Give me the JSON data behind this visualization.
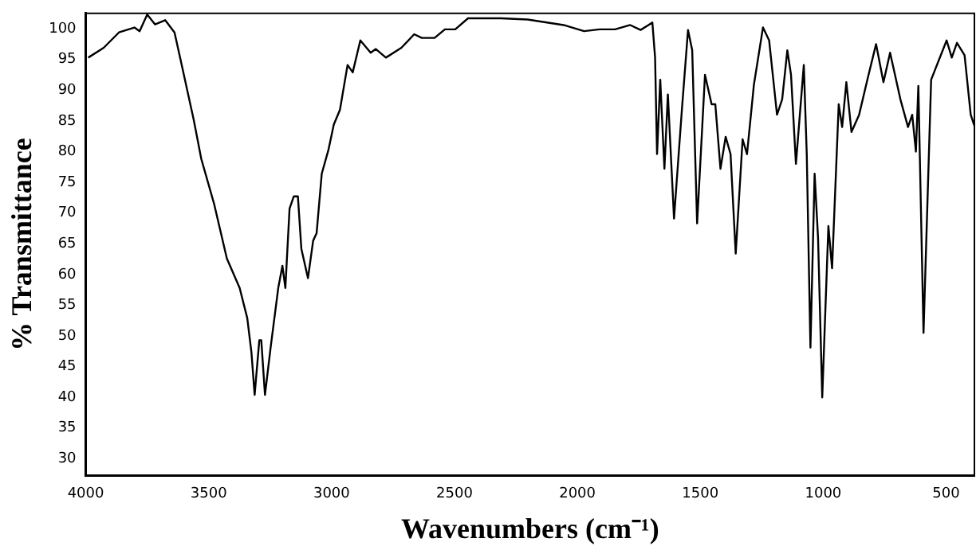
{
  "chart_data": {
    "type": "line",
    "xlabel": "Wavenumbers (cm⁻¹)",
    "ylabel": "% Transmittance",
    "xlim": [
      4000,
      385
    ],
    "ylim": [
      27.3,
      102.5
    ],
    "xticks": [
      4000,
      3500,
      3000,
      2500,
      2000,
      1500,
      1000,
      500
    ],
    "yticks": [
      30,
      35,
      40,
      45,
      50,
      55,
      60,
      65,
      70,
      75,
      80,
      85,
      90,
      95,
      100
    ],
    "grid": false,
    "legend": false,
    "marker": "none",
    "line_style": "solid",
    "series": [
      {
        "color": "#000000",
        "x": [
          3990,
          3927,
          3865,
          3802,
          3781,
          3750,
          3718,
          3677,
          3639,
          3614,
          3561,
          3530,
          3478,
          3426,
          3374,
          3343,
          3326,
          3313,
          3294,
          3286,
          3271,
          3248,
          3217,
          3200,
          3188,
          3171,
          3154,
          3137,
          3123,
          3096,
          3075,
          3061,
          3040,
          3012,
          2991,
          2966,
          2935,
          2914,
          2883,
          2841,
          2820,
          2779,
          2716,
          2664,
          2633,
          2581,
          2539,
          2497,
          2445,
          2310,
          2203,
          2056,
          1973,
          1910,
          1847,
          1785,
          1743,
          1711,
          1695,
          1684,
          1676,
          1663,
          1646,
          1632,
          1607,
          1575,
          1550,
          1533,
          1513,
          1481,
          1454,
          1439,
          1418,
          1397,
          1377,
          1356,
          1328,
          1310,
          1282,
          1245,
          1220,
          1188,
          1167,
          1146,
          1131,
          1111,
          1079,
          1067,
          1052,
          1035,
          1021,
          1004,
          979,
          964,
          937,
          923,
          906,
          885,
          854,
          818,
          785,
          755,
          728,
          686,
          655,
          638,
          623,
          613,
          592,
          561,
          498,
          477,
          456,
          425,
          400,
          385
        ],
        "values": [
          95.3,
          96.9,
          99.4,
          100.2,
          99.6,
          102.3,
          100.7,
          101.4,
          99.4,
          94.9,
          85.2,
          78.8,
          71.5,
          62.6,
          57.8,
          52.9,
          47.3,
          40.4,
          49.3,
          49.3,
          40.4,
          48.1,
          57.8,
          61.4,
          57.8,
          70.7,
          72.7,
          72.7,
          64.2,
          59.4,
          65.5,
          66.7,
          76.4,
          80.4,
          84.4,
          86.8,
          94.1,
          92.9,
          98.1,
          96.1,
          96.7,
          95.3,
          96.9,
          99.1,
          98.5,
          98.5,
          99.9,
          99.9,
          101.7,
          101.7,
          101.5,
          100.6,
          99.6,
          99.9,
          99.9,
          100.6,
          99.8,
          100.6,
          101.0,
          95.3,
          79.6,
          91.7,
          77.2,
          89.3,
          69.1,
          86.8,
          99.8,
          96.5,
          68.3,
          92.5,
          87.7,
          87.7,
          77.2,
          82.4,
          79.6,
          63.4,
          82.0,
          79.6,
          90.9,
          100.2,
          98.1,
          86.0,
          88.5,
          96.5,
          92.5,
          78.0,
          94.1,
          79.6,
          48.1,
          76.4,
          65.9,
          40.0,
          67.9,
          61.0,
          87.7,
          84.0,
          91.3,
          83.2,
          86.0,
          92.1,
          97.5,
          91.3,
          96.1,
          88.5,
          84.0,
          86.0,
          80.0,
          90.7,
          50.5,
          91.7,
          98.1,
          95.3,
          97.7,
          95.7,
          86.0,
          84.2
        ]
      }
    ]
  }
}
